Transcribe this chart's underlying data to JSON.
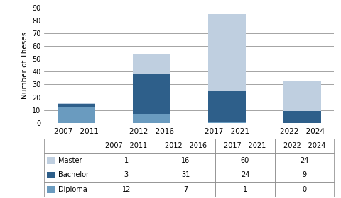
{
  "categories": [
    "2007 - 2011",
    "2012 - 2016",
    "2017 - 2021",
    "2022 - 2024"
  ],
  "master": [
    1,
    16,
    60,
    24
  ],
  "bachelor": [
    3,
    31,
    24,
    9
  ],
  "diploma": [
    12,
    7,
    1,
    0
  ],
  "color_master": "#bfcfe0",
  "color_bachelor": "#2e5f8a",
  "color_diploma": "#6a9bbf",
  "ylabel": "Number of Theses",
  "ylim": [
    0,
    90
  ],
  "yticks": [
    0,
    10,
    20,
    30,
    40,
    50,
    60,
    70,
    80,
    90
  ],
  "background_color": "#ffffff"
}
